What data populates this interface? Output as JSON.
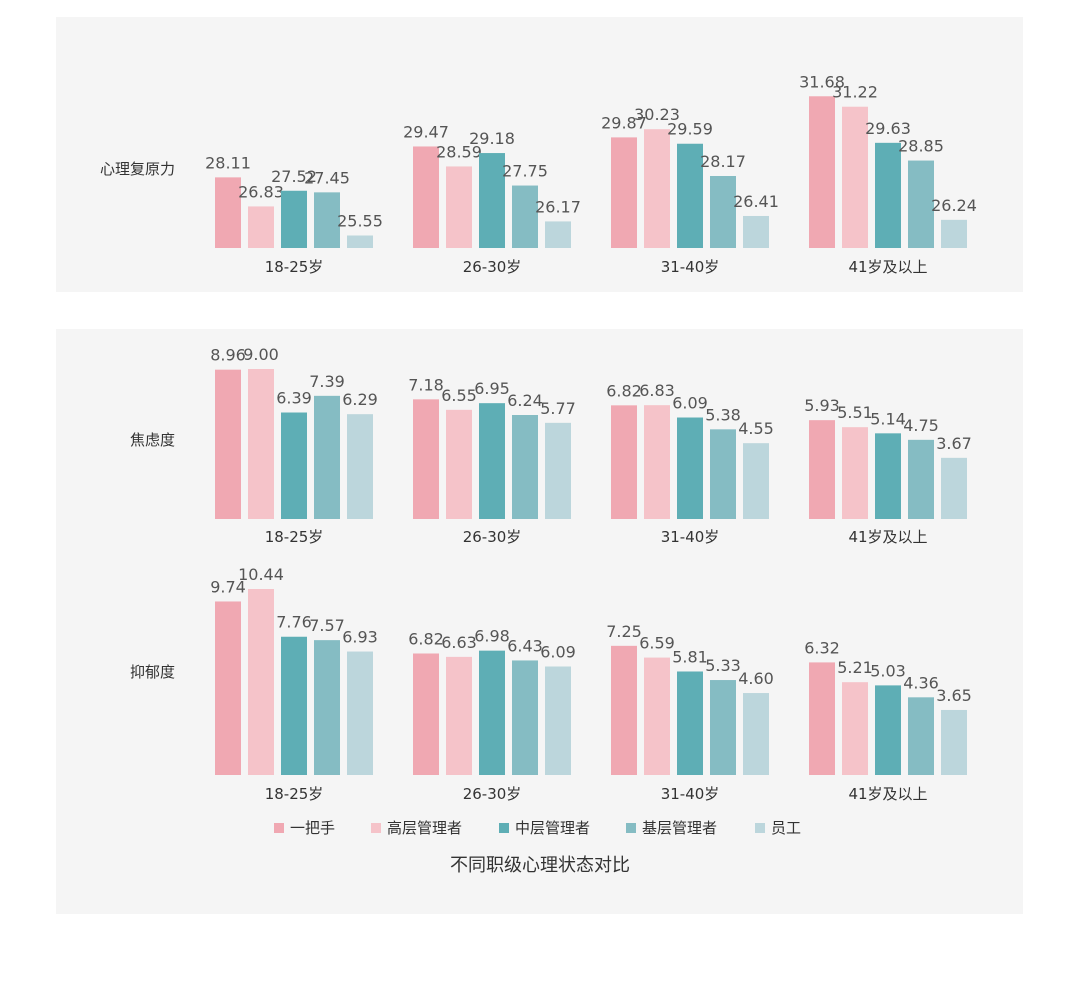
{
  "colors": [
    "#f0a8b2",
    "#f5c3c9",
    "#5eaeb5",
    "#85bcc3",
    "#bcd6dc"
  ],
  "legend": [
    "一把手",
    "高层管理者",
    "中层管理者",
    "基层管理者",
    "员工"
  ],
  "caption": "不同职级心理状态对比",
  "chart_data": [
    {
      "type": "bar",
      "title": "心理复原力",
      "categories": [
        "18-25岁",
        "26-30岁",
        "31-40岁",
        "41岁及以上"
      ],
      "ylim": [
        25,
        32
      ],
      "series": [
        {
          "name": "一把手",
          "values": [
            28.11,
            29.47,
            29.87,
            31.68
          ],
          "labels": [
            "28.11",
            "29.47",
            "29.87",
            "31.68"
          ]
        },
        {
          "name": "高层管理者",
          "values": [
            26.83,
            28.59,
            30.23,
            31.22
          ],
          "labels": [
            "26.83",
            "28.59",
            "30.23",
            "31.22"
          ]
        },
        {
          "name": "中层管理者",
          "values": [
            27.52,
            29.18,
            29.59,
            29.63
          ],
          "labels": [
            "27.52",
            "29.18",
            "29.59",
            "29.63"
          ]
        },
        {
          "name": "基层管理者",
          "values": [
            27.45,
            27.75,
            28.17,
            28.85
          ],
          "labels": [
            "27.45",
            "27.75",
            "28.17",
            "28.85"
          ]
        },
        {
          "name": "员工",
          "values": [
            25.55,
            26.17,
            26.41,
            26.24
          ],
          "labels": [
            "25.55",
            "26.17",
            "26.41",
            "26.24"
          ]
        }
      ]
    },
    {
      "type": "bar",
      "title": "焦虑度",
      "categories": [
        "18-25岁",
        "26-30岁",
        "31-40岁",
        "41岁及以上"
      ],
      "ylim": [
        0,
        9
      ],
      "series": [
        {
          "name": "一把手",
          "values": [
            8.96,
            7.18,
            6.82,
            5.93
          ],
          "labels": [
            "8.96",
            "7.18",
            "6.82",
            "5.93"
          ]
        },
        {
          "name": "高层管理者",
          "values": [
            9.0,
            6.55,
            6.83,
            5.51
          ],
          "labels": [
            "9.00",
            "6.55",
            "6.83",
            "5.51"
          ]
        },
        {
          "name": "中层管理者",
          "values": [
            6.39,
            6.95,
            6.09,
            5.14
          ],
          "labels": [
            "6.39",
            "6.95",
            "6.09",
            "5.14"
          ]
        },
        {
          "name": "基层管理者",
          "values": [
            7.39,
            6.24,
            5.38,
            4.75
          ],
          "labels": [
            "7.39",
            "6.24",
            "5.38",
            "4.75"
          ]
        },
        {
          "name": "员工",
          "values": [
            6.29,
            5.77,
            4.55,
            3.67
          ],
          "labels": [
            "6.29",
            "5.77",
            "4.55",
            "3.67"
          ]
        }
      ]
    },
    {
      "type": "bar",
      "title": "抑郁度",
      "categories": [
        "18-25岁",
        "26-30岁",
        "31-40岁",
        "41岁及以上"
      ],
      "ylim": [
        0,
        10.44
      ],
      "series": [
        {
          "name": "一把手",
          "values": [
            9.74,
            6.82,
            7.25,
            6.32
          ],
          "labels": [
            "9.74",
            "6.82",
            "7.25",
            "6.32"
          ]
        },
        {
          "name": "高层管理者",
          "values": [
            10.44,
            6.63,
            6.59,
            5.21
          ],
          "labels": [
            "10.44",
            "6.63",
            "6.59",
            "5.21"
          ]
        },
        {
          "name": "中层管理者",
          "values": [
            7.76,
            6.98,
            5.81,
            5.03
          ],
          "labels": [
            "7.76",
            "6.98",
            "5.81",
            "5.03"
          ]
        },
        {
          "name": "基层管理者",
          "values": [
            7.57,
            6.43,
            5.33,
            4.36
          ],
          "labels": [
            "7.57",
            "6.43",
            "5.33",
            "4.36"
          ]
        },
        {
          "name": "员工",
          "values": [
            6.93,
            6.09,
            4.6,
            3.65
          ],
          "labels": [
            "6.93",
            "6.09",
            "4.60",
            "3.65"
          ]
        }
      ]
    }
  ]
}
